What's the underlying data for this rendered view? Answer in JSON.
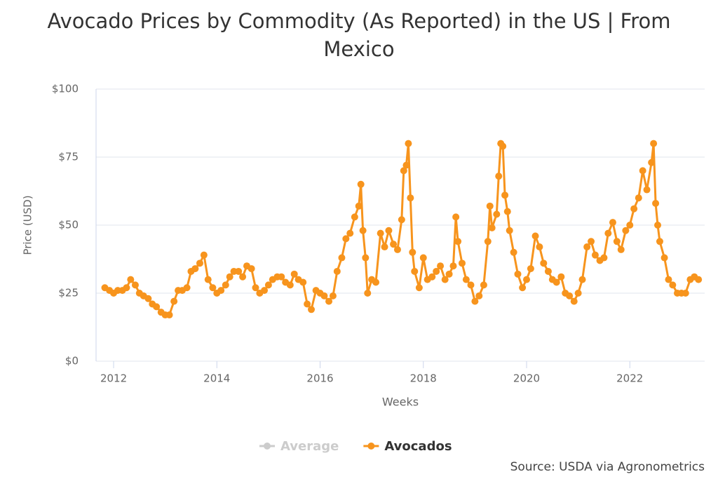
{
  "chart_data": {
    "type": "line",
    "title": "Avocado Prices by Commodity (As Reported) in the US | From Mexico",
    "x_label": "Weeks",
    "y_label": "Price (USD)",
    "source": "Source: USDA via Agronometrics",
    "x": [
      2011.83,
      2011.92,
      2012.0,
      2012.08,
      2012.17,
      2012.25,
      2012.33,
      2012.42,
      2012.5,
      2012.58,
      2012.67,
      2012.75,
      2012.83,
      2012.92,
      2013.0,
      2013.08,
      2013.17,
      2013.25,
      2013.33,
      2013.42,
      2013.5,
      2013.58,
      2013.67,
      2013.75,
      2013.83,
      2013.92,
      2014.0,
      2014.08,
      2014.17,
      2014.25,
      2014.33,
      2014.42,
      2014.5,
      2014.58,
      2014.67,
      2014.75,
      2014.83,
      2014.92,
      2015.0,
      2015.08,
      2015.17,
      2015.25,
      2015.33,
      2015.42,
      2015.5,
      2015.58,
      2015.67,
      2015.75,
      2015.83,
      2015.92,
      2016.0,
      2016.08,
      2016.17,
      2016.25,
      2016.33,
      2016.42,
      2016.5,
      2016.58,
      2016.67,
      2016.75,
      2016.79,
      2016.83,
      2016.88,
      2016.92,
      2017.0,
      2017.08,
      2017.17,
      2017.25,
      2017.33,
      2017.42,
      2017.5,
      2017.58,
      2017.62,
      2017.67,
      2017.71,
      2017.75,
      2017.79,
      2017.83,
      2017.92,
      2018.0,
      2018.08,
      2018.17,
      2018.25,
      2018.33,
      2018.42,
      2018.5,
      2018.58,
      2018.63,
      2018.67,
      2018.75,
      2018.83,
      2018.92,
      2019.0,
      2019.08,
      2019.17,
      2019.25,
      2019.29,
      2019.33,
      2019.42,
      2019.46,
      2019.5,
      2019.54,
      2019.58,
      2019.63,
      2019.67,
      2019.75,
      2019.83,
      2019.92,
      2020.0,
      2020.08,
      2020.17,
      2020.25,
      2020.33,
      2020.42,
      2020.5,
      2020.58,
      2020.67,
      2020.75,
      2020.83,
      2020.92,
      2021.0,
      2021.08,
      2021.17,
      2021.25,
      2021.33,
      2021.42,
      2021.5,
      2021.58,
      2021.67,
      2021.75,
      2021.83,
      2021.92,
      2022.0,
      2022.08,
      2022.17,
      2022.25,
      2022.33,
      2022.42,
      2022.46,
      2022.5,
      2022.54,
      2022.58,
      2022.67,
      2022.75,
      2022.83,
      2022.92,
      2023.0,
      2023.08,
      2023.17,
      2023.25,
      2023.33
    ],
    "series": [
      {
        "name": "Average",
        "color": "#cccccc",
        "visible": false
      },
      {
        "name": "Avocados",
        "color": "#f7941d",
        "visible": true,
        "values": [
          27,
          26,
          25,
          26,
          26,
          27,
          30,
          28,
          25,
          24,
          23,
          21,
          20,
          18,
          17,
          17,
          22,
          26,
          26,
          27,
          33,
          34,
          36,
          39,
          30,
          27,
          25,
          26,
          28,
          31,
          33,
          33,
          31,
          35,
          34,
          27,
          25,
          26,
          28,
          30,
          31,
          31,
          29,
          28,
          32,
          30,
          29,
          21,
          19,
          26,
          25,
          24,
          22,
          24,
          33,
          38,
          45,
          47,
          53,
          57,
          65,
          48,
          38,
          25,
          30,
          29,
          47,
          42,
          48,
          43,
          41,
          52,
          70,
          72,
          80,
          60,
          40,
          33,
          27,
          38,
          30,
          31,
          33,
          35,
          30,
          32,
          35,
          53,
          44,
          36,
          30,
          28,
          22,
          24,
          28,
          44,
          57,
          49,
          54,
          68,
          80,
          79,
          61,
          55,
          48,
          40,
          32,
          27,
          30,
          34,
          46,
          42,
          36,
          33,
          30,
          29,
          31,
          25,
          24,
          22,
          25,
          30,
          42,
          44,
          39,
          37,
          38,
          47,
          51,
          44,
          41,
          48,
          50,
          56,
          60,
          70,
          63,
          73,
          80,
          58,
          50,
          44,
          38,
          30,
          28,
          25,
          25,
          25,
          30,
          31,
          30
        ]
      }
    ],
    "xlim": [
      2011.66,
      2023.45
    ],
    "xticks": [
      2012,
      2014,
      2016,
      2018,
      2020,
      2022
    ],
    "ylim": [
      0,
      100
    ],
    "yticks": [
      {
        "value": 0,
        "label": "$0"
      },
      {
        "value": 25,
        "label": "$25"
      },
      {
        "value": 50,
        "label": "$50"
      },
      {
        "value": 75,
        "label": "$75"
      },
      {
        "value": 100,
        "label": "$100"
      }
    ],
    "grid": true
  }
}
